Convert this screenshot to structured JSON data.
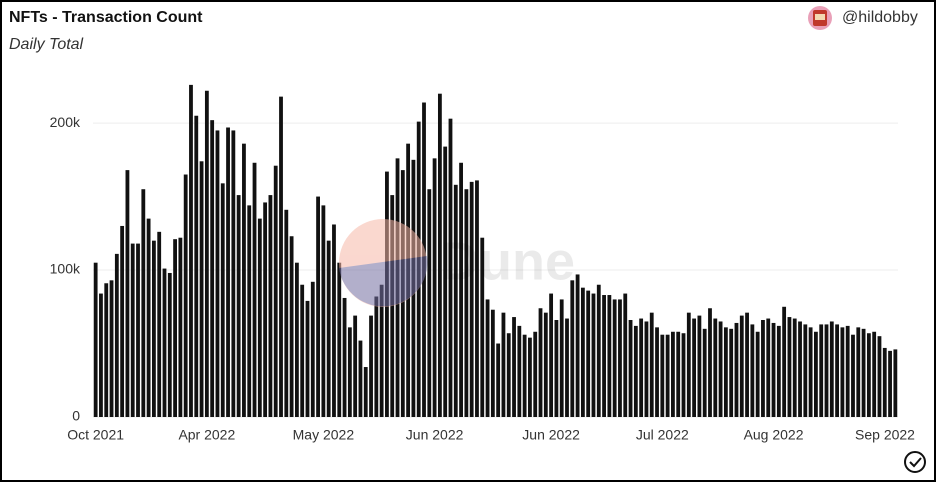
{
  "header": {
    "title": "NFTs - Transaction Count",
    "subtitle": "Daily Total",
    "author": "@hildobby"
  },
  "watermark": "Dune",
  "chart_data": {
    "type": "bar",
    "color": "#111111",
    "grid": true,
    "ylim": [
      0,
      230000
    ],
    "yticks": [
      {
        "value": 0,
        "label": "0"
      },
      {
        "value": 100000,
        "label": "100k"
      },
      {
        "value": 200000,
        "label": "200k"
      }
    ],
    "categories": [
      "Oct 2021",
      null,
      null,
      null,
      null,
      null,
      null,
      null,
      null,
      null,
      null,
      null,
      null,
      null,
      null,
      null,
      null,
      null,
      null,
      null,
      null,
      "Apr 2022",
      null,
      null,
      null,
      null,
      null,
      null,
      null,
      null,
      null,
      null,
      null,
      null,
      null,
      null,
      null,
      null,
      null,
      null,
      null,
      null,
      null,
      "May 2022",
      null,
      null,
      null,
      null,
      null,
      null,
      null,
      null,
      null,
      null,
      null,
      null,
      null,
      null,
      null,
      null,
      null,
      null,
      null,
      null,
      "Jun 2022",
      null,
      null,
      null,
      null,
      null,
      null,
      null,
      null,
      null,
      null,
      null,
      null,
      null,
      null,
      null,
      null,
      null,
      null,
      null,
      null,
      null,
      "Jun 2022",
      null,
      null,
      null,
      null,
      null,
      null,
      null,
      null,
      null,
      null,
      null,
      null,
      null,
      null,
      null,
      null,
      null,
      null,
      null,
      null,
      "Jul 2022",
      null,
      null,
      null,
      null,
      null,
      null,
      null,
      null,
      null,
      null,
      null,
      null,
      null,
      null,
      null,
      null,
      null,
      null,
      null,
      null,
      "Aug 2022",
      null,
      null,
      null,
      null,
      null,
      null,
      null,
      null,
      null,
      null,
      null,
      null,
      null,
      null,
      null,
      null,
      null,
      null,
      null,
      null,
      null,
      "Sep 2022",
      null
    ],
    "values": [
      105000,
      84000,
      91000,
      93000,
      111000,
      130000,
      168000,
      118000,
      118000,
      155000,
      135000,
      120000,
      126000,
      101000,
      98000,
      121000,
      122000,
      165000,
      226000,
      205000,
      174000,
      222000,
      202000,
      195000,
      159000,
      197000,
      195000,
      151000,
      186000,
      144000,
      173000,
      135000,
      146000,
      151000,
      171000,
      218000,
      141000,
      123000,
      105000,
      90000,
      79000,
      92000,
      150000,
      144000,
      120000,
      131000,
      105000,
      81000,
      61000,
      69000,
      52000,
      34000,
      69000,
      82000,
      90000,
      167000,
      151000,
      176000,
      168000,
      186000,
      175000,
      201000,
      214000,
      155000,
      176000,
      220000,
      184000,
      203000,
      158000,
      173000,
      155000,
      160000,
      161000,
      122000,
      80000,
      73000,
      50000,
      71000,
      57000,
      68000,
      62000,
      56000,
      54000,
      58000,
      74000,
      71000,
      84000,
      66000,
      80000,
      67000,
      93000,
      97000,
      88000,
      86000,
      84000,
      90000,
      83000,
      83000,
      80000,
      80000,
      84000,
      66000,
      62000,
      67000,
      65000,
      71000,
      61000,
      56000,
      56000,
      58000,
      58000,
      57000,
      71000,
      67000,
      69000,
      60000,
      74000,
      67000,
      65000,
      61000,
      60000,
      64000,
      69000,
      71000,
      63000,
      58000,
      66000,
      67000,
      64000,
      62000,
      75000,
      68000,
      67000,
      65000,
      63000,
      61000,
      58000,
      63000,
      63000,
      65000,
      63000,
      61000,
      62000,
      56000,
      61000,
      60000,
      57000,
      58000,
      55000,
      47000,
      45000,
      46000
    ]
  }
}
